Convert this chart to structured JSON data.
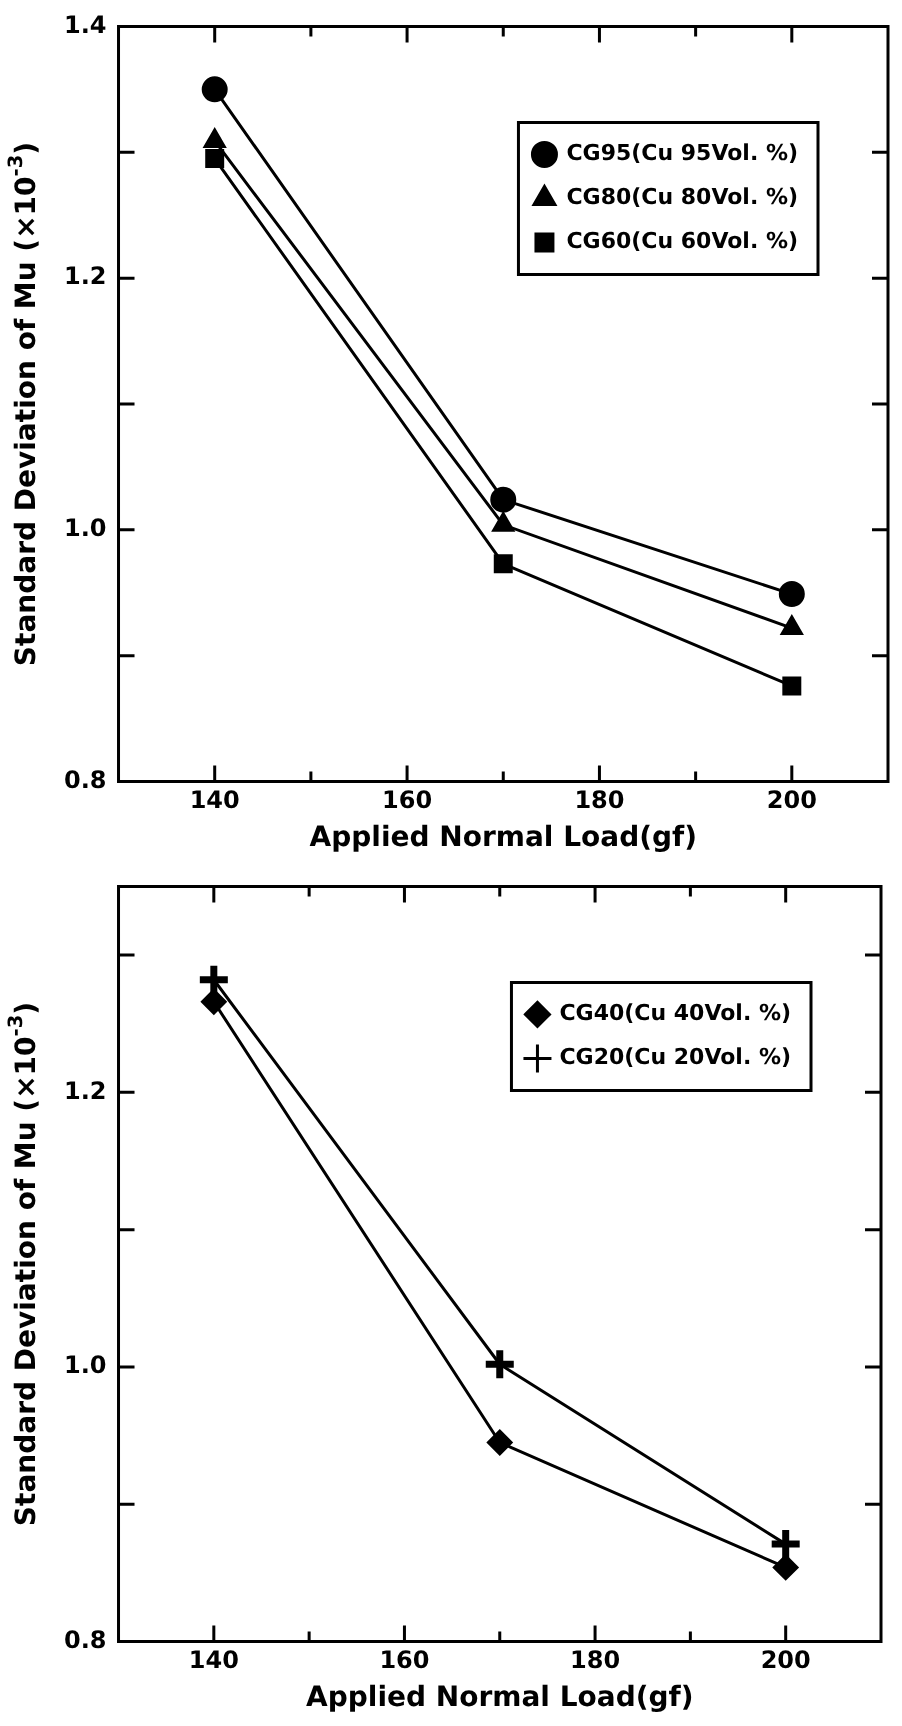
{
  "chart_data": [
    {
      "type": "line",
      "xlabel": "Applied Normal Load(gf)",
      "ylabel": "Standard Deviation of Mu (×10$^{-3}$)",
      "x": [
        140,
        170,
        200
      ],
      "series": [
        {
          "name": "CG95(Cu 95Vol. %)",
          "color": "#000000",
          "marker": "circle",
          "values": [
            1.35,
            1.024,
            0.949
          ]
        },
        {
          "name": "CG80(Cu 80Vol. %)",
          "color": "#000000",
          "marker": "triangle",
          "values": [
            1.309,
            1.004,
            0.922
          ]
        },
        {
          "name": "CG60(Cu 60Vol. %)",
          "color": "#000000",
          "marker": "square",
          "values": [
            1.295,
            0.973,
            0.876
          ]
        }
      ],
      "xlim": [
        130,
        210
      ],
      "xticks": [
        140,
        {
          "value": 150,
          "label": null
        },
        160,
        {
          "value": 170,
          "label": null
        },
        180,
        {
          "value": 190,
          "label": null
        },
        200
      ],
      "ylim": [
        0.8,
        1.4
      ],
      "yticks": [
        0.8,
        {
          "value": 0.9,
          "label": null
        },
        {
          "value": 1.0,
          "label": "1.0"
        },
        {
          "value": 1.1,
          "label": null
        },
        1.2,
        {
          "value": 1.3,
          "label": null
        },
        1.4
      ],
      "grid": false,
      "legend": "top right",
      "line_style": "solid"
    },
    {
      "type": "line",
      "xlabel": "Applied Normal Load(gf)",
      "ylabel": "Standard Deviation of Mu (×10$^{-3}$)",
      "x": [
        140,
        170,
        200
      ],
      "series": [
        {
          "name": "CG40(Cu 40Vol. %)",
          "color": "#000000",
          "marker": "diamond",
          "values": [
            1.266,
            0.945,
            0.854
          ]
        },
        {
          "name": "CG20(Cu 20Vol. %)",
          "color": "#000000",
          "marker": "cross",
          "values": [
            1.282,
            1.002,
            0.871
          ]
        }
      ],
      "xlim": [
        130,
        210
      ],
      "xticks": [
        140,
        {
          "value": 150,
          "label": null
        },
        160,
        {
          "value": 170,
          "label": null
        },
        180,
        {
          "value": 190,
          "label": null
        },
        200
      ],
      "ylim": [
        0.8,
        1.35
      ],
      "yticks": [
        0.8,
        {
          "value": 0.9,
          "label": null
        },
        {
          "value": 1.0,
          "label": "1.0"
        },
        {
          "value": 1.1,
          "label": null
        },
        1.2,
        {
          "value": 1.3,
          "label": null
        }
      ],
      "grid": false,
      "legend": "top right",
      "line_style": "solid"
    }
  ]
}
